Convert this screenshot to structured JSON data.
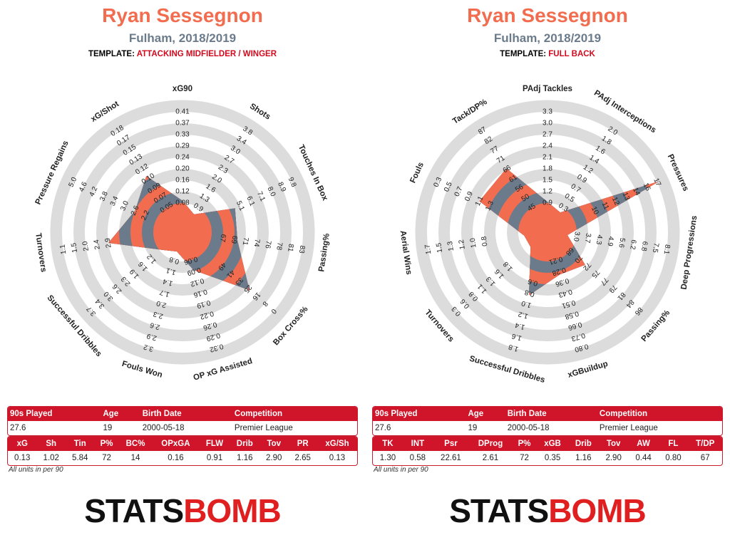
{
  "colors": {
    "title": "#f26d4f",
    "subtitle": "#6b7b8c",
    "accent_red": "#d0152a",
    "ring_gray": "#dcdcdc",
    "fill_salmon": "#f26d4f",
    "fill_slate": "#6b7b8c"
  },
  "note": "All units in per 90",
  "logo": {
    "part1": "STATS",
    "part2": "BOMB"
  },
  "panels": [
    {
      "title": "Ryan Sessegnon",
      "subtitle": "Fulham, 2018/2019",
      "template_label": "TEMPLATE:",
      "template_value": "ATTACKING MIDFIELDER / WINGER",
      "info": {
        "headers": [
          "90s Played",
          "Age",
          "Birth Date",
          "Competition"
        ],
        "values": [
          "27.6",
          "19",
          "2000-05-18",
          "Premier League"
        ]
      },
      "stats": {
        "headers": [
          "xG",
          "Sh",
          "Tin",
          "P%",
          "BC%",
          "OPxGA",
          "FLW",
          "Drib",
          "Tov",
          "PR",
          "xG/Sh"
        ],
        "values": [
          "0.13",
          "1.02",
          "5.84",
          "72",
          "14",
          "0.16",
          "0.91",
          "1.16",
          "2.90",
          "2.65",
          "0.13"
        ]
      }
    },
    {
      "title": "Ryan Sessegnon",
      "subtitle": "Fulham, 2018/2019",
      "template_label": "TEMPLATE:",
      "template_value": "FULL BACK",
      "info": {
        "headers": [
          "90s Played",
          "Age",
          "Birth Date",
          "Competition"
        ],
        "values": [
          "27.6",
          "19",
          "2000-05-18",
          "Premier League"
        ]
      },
      "stats": {
        "headers": [
          "TK",
          "INT",
          "Psr",
          "DProg",
          "P%",
          "xGB",
          "Drib",
          "Tov",
          "AW",
          "FL",
          "T/DP"
        ],
        "values": [
          "1.30",
          "0.58",
          "22.61",
          "2.61",
          "72",
          "0.35",
          "1.16",
          "2.90",
          "0.44",
          "0.80",
          "67"
        ]
      }
    }
  ],
  "chart_data": [
    {
      "type": "radar",
      "title": "Ryan Sessegnon",
      "subtitle": "Fulham, 2018/2019",
      "axes": [
        {
          "label": "xG90",
          "ticks": [
            "0.08",
            "0.12",
            "0.16",
            "0.20",
            "0.24",
            "0.29",
            "0.33",
            "0.37",
            "0.41"
          ],
          "value_norm": 0.12
        },
        {
          "label": "Shots",
          "ticks": [
            "0.9",
            "1.3",
            "1.6",
            "2.0",
            "2.3",
            "2.7",
            "3.0",
            "3.4",
            "3.8"
          ],
          "value_norm": 0.03
        },
        {
          "label": "Touches In Box",
          "ticks": [
            "5.1",
            "6.1",
            "7.1",
            "8.0",
            "8.9",
            "9.8"
          ],
          "ticks_offset": 3,
          "value_norm": 0.35
        },
        {
          "label": "Passing%",
          "ticks": [
            "67",
            "69",
            "71",
            "74",
            "76",
            "78",
            "81",
            "83"
          ],
          "ticks_offset": 1,
          "value_norm": 0.33
        },
        {
          "label": "Box Cross%",
          "ticks": [
            "49",
            "41",
            "33",
            "25",
            "16",
            "8",
            "0"
          ],
          "ticks_offset": 2,
          "value_norm": 0.62
        },
        {
          "label": "OP xG Assisted",
          "ticks": [
            "0.06",
            "0.09",
            "0.12",
            "0.16",
            "0.19",
            "0.22",
            "0.26",
            "0.29",
            "0.32"
          ],
          "value_norm": 0.19
        },
        {
          "label": "Fouls Won",
          "ticks": [
            "0.8",
            "1.1",
            "1.4",
            "1.7",
            "2.0",
            "2.3",
            "2.6",
            "2.9",
            "3.2"
          ],
          "value_norm": 0.02
        },
        {
          "label": "Successful Dribbles",
          "ticks": [
            "1.2",
            "1.6",
            "1.9",
            "2.3",
            "2.6",
            "3.0",
            "3.4",
            "3.7"
          ],
          "ticks_offset": 1,
          "value_norm": 0.08
        },
        {
          "label": "Turnovers",
          "ticks": [
            "2.9",
            "2.4",
            "2.0",
            "1.5",
            "1.1"
          ],
          "ticks_offset": 4,
          "value_norm": 0.5
        },
        {
          "label": "Pressure Regains",
          "ticks": [
            "2.2",
            "2.6",
            "3.0",
            "3.4",
            "3.8",
            "4.2",
            "4.6",
            "5.0"
          ],
          "ticks_offset": 1,
          "value_norm": 0.3
        },
        {
          "label": "xG/Shot",
          "ticks": [
            "0.05",
            "0.07",
            "0.09",
            "0.10",
            "0.12",
            "0.13",
            "0.15",
            "0.17",
            "0.18"
          ],
          "value_norm": 0.43
        }
      ]
    },
    {
      "type": "radar",
      "title": "Ryan Sessegnon",
      "subtitle": "Fulham, 2018/2019",
      "axes": [
        {
          "label": "PAdj Tackles",
          "ticks": [
            "0.9",
            "1.2",
            "1.5",
            "1.8",
            "2.1",
            "2.4",
            "2.7",
            "3.0",
            "3.3"
          ],
          "value_norm": 0.11
        },
        {
          "label": "PAdj Interceptions",
          "ticks": [
            "0.3",
            "0.5",
            "0.7",
            "0.9",
            "1.2",
            "1.4",
            "1.6",
            "1.8",
            "2.0"
          ],
          "value_norm": 0.05
        },
        {
          "label": "Pressures",
          "ticks": [
            "10",
            "11",
            "12",
            "13",
            "14",
            "16",
            "17"
          ],
          "ticks_offset": 2,
          "value_norm": 0.93
        },
        {
          "label": "Deep Progressions",
          "ticks": [
            "3.0",
            "3.7",
            "4.3",
            "4.9",
            "5.6",
            "6.2",
            "6.8",
            "7.5",
            "8.1"
          ],
          "value_norm": 0.02
        },
        {
          "label": "Passing%",
          "ticks": [
            "68",
            "70",
            "72",
            "75",
            "77",
            "79",
            "81",
            "84",
            "86"
          ],
          "value_norm": 0.28
        },
        {
          "label": "xGBuildup",
          "ticks": [
            "0.21",
            "0.28",
            "0.36",
            "0.43",
            "0.51",
            "0.58",
            "0.66",
            "0.73",
            "0.80"
          ],
          "value_norm": 0.23
        },
        {
          "label": "Successful Dribbles",
          "ticks": [
            "0.6",
            "0.8",
            "1.0",
            "1.2",
            "1.4",
            "1.6",
            "1.8"
          ],
          "ticks_offset": 2,
          "value_norm": 0.42
        },
        {
          "label": "Turnovers",
          "ticks": [
            "1.8",
            "1.6",
            "1.3",
            "1.1",
            "0.8",
            "0.6",
            "0.3"
          ],
          "ticks_offset": 2,
          "value_norm": 0.04
        },
        {
          "label": "Aerial Wins",
          "ticks": [
            "0.8",
            "1.0",
            "1.2",
            "1.3",
            "1.5",
            "1.7"
          ],
          "ticks_offset": 3,
          "value_norm": 0.05
        },
        {
          "label": "Fouls",
          "ticks": [
            "1.3",
            "1.1",
            "0.9",
            "0.7",
            "0.5",
            "0.3"
          ],
          "ticks_offset": 3,
          "value_norm": 0.5
        },
        {
          "label": "Tack/DP%",
          "ticks": [
            "45",
            "50",
            "56",
            "61",
            "66",
            "71",
            "77",
            "82",
            "87"
          ],
          "value_norm": 0.51
        }
      ]
    }
  ]
}
